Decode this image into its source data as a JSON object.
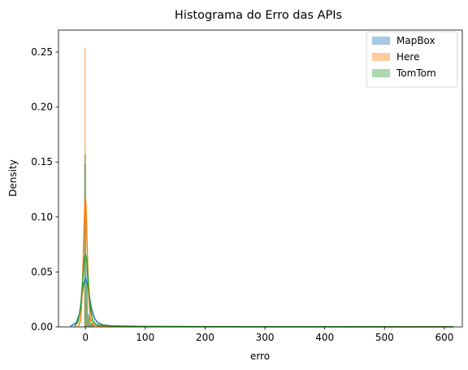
{
  "chart_data": {
    "type": "histogram",
    "title": "Histograma do Erro das APIs",
    "xlabel": "erro",
    "ylabel": "Density",
    "xlim": [
      -45,
      630
    ],
    "ylim": [
      0,
      0.27
    ],
    "xticks": [
      0,
      100,
      200,
      300,
      400,
      500,
      600
    ],
    "xtick_labels": [
      "0",
      "100",
      "200",
      "300",
      "400",
      "500",
      "600"
    ],
    "yticks": [
      0,
      0.05,
      0.1,
      0.15,
      0.2,
      0.25
    ],
    "ytick_labels": [
      "0.00",
      "0.05",
      "0.10",
      "0.15",
      "0.20",
      "0.25"
    ],
    "legend_position": "top-right",
    "grid": false,
    "series": [
      {
        "name": "MapBox",
        "color": "#1f77b4",
        "hist_alpha": 0.4,
        "bins": [
          {
            "x0": -2,
            "x1": 1,
            "density": 0.148
          },
          {
            "x0": 1,
            "x1": 4,
            "density": 0.055
          },
          {
            "x0": 4,
            "x1": 8,
            "density": 0.012
          },
          {
            "x0": 8,
            "x1": 15,
            "density": 0.004
          }
        ],
        "kde": {
          "x": [
            -25,
            -15,
            -10,
            -6,
            -3,
            0,
            3,
            6,
            10,
            15,
            20,
            30,
            45,
            60,
            100,
            200,
            400,
            615
          ],
          "y": [
            0.0005,
            0.004,
            0.012,
            0.027,
            0.039,
            0.044,
            0.04,
            0.03,
            0.017,
            0.008,
            0.004,
            0.0018,
            0.0009,
            0.0006,
            0.0003,
            0.0002,
            0.0001,
            0.0001
          ]
        }
      },
      {
        "name": "Here",
        "color": "#ff7f0e",
        "hist_alpha": 0.4,
        "bins": [
          {
            "x0": -2,
            "x1": 1,
            "density": 0.254
          },
          {
            "x0": 1,
            "x1": 4,
            "density": 0.025
          },
          {
            "x0": 4,
            "x1": 8,
            "density": 0.008
          },
          {
            "x0": 8,
            "x1": 15,
            "density": 0.003
          }
        ],
        "kde": {
          "x": [
            -12,
            -8,
            -5,
            -3,
            -1,
            0,
            1,
            3,
            5,
            8,
            12,
            20,
            30,
            50,
            100,
            200,
            400,
            615
          ],
          "y": [
            0.0005,
            0.006,
            0.035,
            0.075,
            0.112,
            0.118,
            0.11,
            0.072,
            0.034,
            0.008,
            0.002,
            0.001,
            0.0006,
            0.0003,
            0.0002,
            0.0001,
            0.0001,
            0.0001
          ]
        }
      },
      {
        "name": "TomTom",
        "color": "#2ca02c",
        "hist_alpha": 0.4,
        "bins": [
          {
            "x0": -2,
            "x1": 1,
            "density": 0.157
          },
          {
            "x0": 1,
            "x1": 4,
            "density": 0.042
          },
          {
            "x0": 4,
            "x1": 8,
            "density": 0.01
          },
          {
            "x0": 8,
            "x1": 15,
            "density": 0.003
          }
        ],
        "kde": {
          "x": [
            -18,
            -12,
            -8,
            -5,
            -2,
            0,
            2,
            5,
            8,
            12,
            18,
            25,
            40,
            60,
            100,
            200,
            400,
            615
          ],
          "y": [
            0.0005,
            0.005,
            0.018,
            0.04,
            0.062,
            0.066,
            0.061,
            0.04,
            0.018,
            0.006,
            0.002,
            0.0015,
            0.001,
            0.0008,
            0.0005,
            0.0003,
            0.0002,
            0.0001
          ]
        }
      }
    ]
  }
}
